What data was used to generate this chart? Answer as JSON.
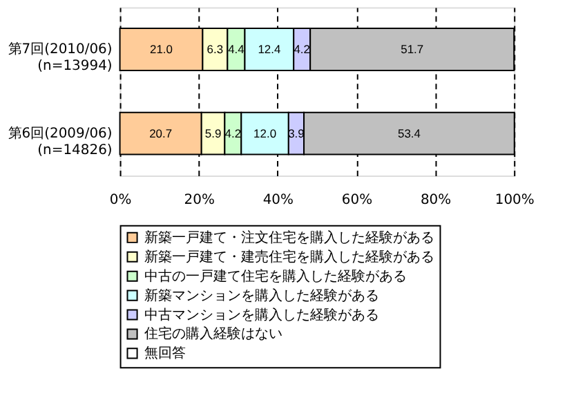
{
  "chart_data": {
    "type": "bar",
    "orientation": "horizontal",
    "stacked": true,
    "categories": [
      "第7回(2010/06)\n(n=13994)",
      "第6回(2009/06)\n(n=14826)"
    ],
    "series": [
      {
        "name": "新築一戸建て・注文住宅を購入した経験がある",
        "color": "#ffcc99",
        "values": [
          21.0,
          20.7
        ],
        "value_labels": [
          "21.0",
          "20.7"
        ]
      },
      {
        "name": "新築一戸建て・建売住宅を購入した経験がある",
        "color": "#ffffcc",
        "values": [
          6.3,
          5.9
        ],
        "value_labels": [
          "6.3",
          "5.9"
        ]
      },
      {
        "name": "中古の一戸建て住宅を購入した経験がある",
        "color": "#ccffcc",
        "values": [
          4.4,
          4.2
        ],
        "value_labels": [
          "4.4",
          "4.2"
        ]
      },
      {
        "name": "新築マンションを購入した経験がある",
        "color": "#ccffff",
        "values": [
          12.4,
          12.0
        ],
        "value_labels": [
          "12.4",
          "12.0"
        ]
      },
      {
        "name": "中古マンションを購入した経験がある",
        "color": "#ccccff",
        "values": [
          4.2,
          3.9
        ],
        "value_labels": [
          "4.2",
          "3.9"
        ]
      },
      {
        "name": "住宅の購入経験はない",
        "color": "#c0c0c0",
        "values": [
          51.7,
          53.4
        ],
        "value_labels": [
          "51.7",
          "53.4"
        ]
      },
      {
        "name": "無回答",
        "color": "#ffffff",
        "values": [
          0,
          0
        ],
        "value_labels": [
          null,
          null
        ]
      }
    ],
    "xlim": [
      0,
      100
    ],
    "xticks": [
      {
        "value": 0,
        "label": "0%"
      },
      {
        "value": 20,
        "label": "20%"
      },
      {
        "value": 40,
        "label": "40%"
      },
      {
        "value": 60,
        "label": "60%"
      },
      {
        "value": 80,
        "label": "80%"
      },
      {
        "value": 100,
        "label": "100%"
      }
    ],
    "grid": "x",
    "legend": "bottom"
  }
}
